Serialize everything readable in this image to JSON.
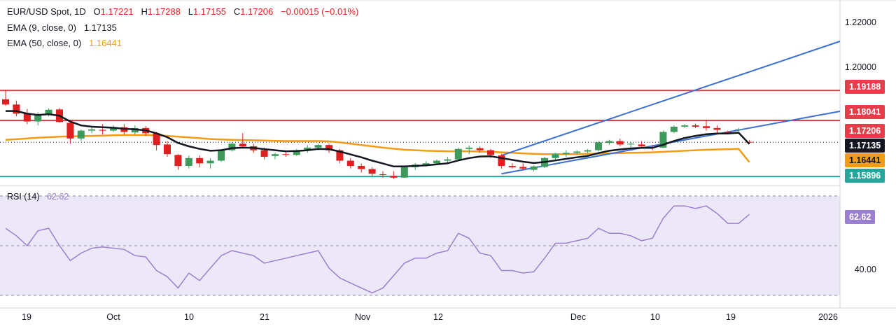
{
  "header": {
    "symbol": "EUR/USD Spot, 1D",
    "o_label": "O",
    "open": "1.17221",
    "h_label": "H",
    "high": "1.17288",
    "l_label": "L",
    "low": "1.17155",
    "c_label": "C",
    "close": "1.17206",
    "change": "−0.00015 (−0.01%)",
    "ema9_label": "EMA (9, close, 0)",
    "ema9_value": "1.17135",
    "ema50_label": "EMA (50, close, 0)",
    "ema50_value": "1.16441",
    "rsi_label": "RSI (14)",
    "rsi_value": "62.62"
  },
  "colors": {
    "up": "#26a69a",
    "upFill": "#3d9a5b",
    "down": "#e02020",
    "ema9": "#131722",
    "ema50": "#f39c12",
    "hline_red": "#e53e4a",
    "hline_green": "#26a69a",
    "channel": "#3a6fd8",
    "rsi": "#9b7fd1",
    "rsi_band": "#ede8f7"
  },
  "price_labels": [
    {
      "text": "1.19188",
      "bg": "#e53e4a",
      "fg": "#ffffff",
      "value": 1.19188
    },
    {
      "text": "1.18041",
      "bg": "#e53e4a",
      "fg": "#ffffff",
      "value": 1.18041
    },
    {
      "text": "1.17206",
      "bg": "#e53e4a",
      "fg": "#ffffff",
      "value": 1.17206
    },
    {
      "text": "1.17135",
      "bg": "#131722",
      "fg": "#ffffff",
      "value": 1.17135
    },
    {
      "text": "1.16441",
      "bg": "#f39c12",
      "fg": "#131722",
      "value": 1.16441
    },
    {
      "text": "1.15896",
      "bg": "#26a69a",
      "fg": "#ffffff",
      "value": 1.15896
    }
  ],
  "price_ticks": [
    "1.22000",
    "1.20000"
  ],
  "rsi_ticks": [
    "40.00"
  ],
  "x_ticks": [
    "19",
    "Oct",
    "10",
    "21",
    "Nov",
    "12",
    "Dec",
    "10",
    "19",
    "2026"
  ],
  "chart_data": {
    "type": "candlestick",
    "price_ylim": [
      1.1555,
      1.2265
    ],
    "rsi_ylim": [
      30,
      70
    ],
    "rsi_levels": [
      70,
      50,
      30
    ],
    "hlines": [
      1.19188,
      1.18041,
      1.15896
    ],
    "candles": [
      [
        1.1885,
        1.192,
        1.186,
        1.1865
      ],
      [
        1.1865,
        1.188,
        1.182,
        1.183
      ],
      [
        1.1832,
        1.1848,
        1.179,
        1.18
      ],
      [
        1.18,
        1.1835,
        1.1785,
        1.1825
      ],
      [
        1.1828,
        1.185,
        1.182,
        1.1845
      ],
      [
        1.1846,
        1.1852,
        1.1795,
        1.1798
      ],
      [
        1.1795,
        1.18,
        1.1715,
        1.1735
      ],
      [
        1.1735,
        1.177,
        1.1725,
        1.1765
      ],
      [
        1.1765,
        1.178,
        1.1755,
        1.177
      ],
      [
        1.1768,
        1.179,
        1.175,
        1.1765
      ],
      [
        1.1765,
        1.1785,
        1.176,
        1.1775
      ],
      [
        1.1778,
        1.179,
        1.175,
        1.176
      ],
      [
        1.1758,
        1.1785,
        1.175,
        1.1775
      ],
      [
        1.1775,
        1.1782,
        1.1745,
        1.1755
      ],
      [
        1.1755,
        1.176,
        1.169,
        1.171
      ],
      [
        1.1712,
        1.1725,
        1.1665,
        1.1675
      ],
      [
        1.1672,
        1.1675,
        1.1615,
        1.163
      ],
      [
        1.163,
        1.167,
        1.162,
        1.166
      ],
      [
        1.166,
        1.167,
        1.1625,
        1.164
      ],
      [
        1.164,
        1.166,
        1.162,
        1.165
      ],
      [
        1.165,
        1.1695,
        1.1645,
        1.169
      ],
      [
        1.169,
        1.172,
        1.1685,
        1.1715
      ],
      [
        1.1715,
        1.1755,
        1.17,
        1.1705
      ],
      [
        1.1705,
        1.1715,
        1.168,
        1.169
      ],
      [
        1.169,
        1.17,
        1.1655,
        1.1665
      ],
      [
        1.1668,
        1.168,
        1.1655,
        1.1675
      ],
      [
        1.1675,
        1.1685,
        1.1665,
        1.1672
      ],
      [
        1.1672,
        1.1695,
        1.1668,
        1.169
      ],
      [
        1.169,
        1.171,
        1.168,
        1.17
      ],
      [
        1.17,
        1.1715,
        1.169,
        1.171
      ],
      [
        1.171,
        1.1715,
        1.168,
        1.169
      ],
      [
        1.169,
        1.1695,
        1.164,
        1.165
      ],
      [
        1.165,
        1.166,
        1.162,
        1.163
      ],
      [
        1.163,
        1.164,
        1.1605,
        1.1618
      ],
      [
        1.1618,
        1.1625,
        1.159,
        1.16
      ],
      [
        1.1598,
        1.161,
        1.1585,
        1.1595
      ],
      [
        1.1592,
        1.161,
        1.158,
        1.1585
      ],
      [
        1.1585,
        1.163,
        1.1584,
        1.1625
      ],
      [
        1.1625,
        1.164,
        1.1615,
        1.1635
      ],
      [
        1.1632,
        1.1648,
        1.1628,
        1.164
      ],
      [
        1.164,
        1.1655,
        1.1635,
        1.165
      ],
      [
        1.165,
        1.1665,
        1.164,
        1.1655
      ],
      [
        1.1655,
        1.17,
        1.165,
        1.1695
      ],
      [
        1.1695,
        1.1708,
        1.1675,
        1.17
      ],
      [
        1.1698,
        1.1705,
        1.168,
        1.169
      ],
      [
        1.169,
        1.1695,
        1.166,
        1.1672
      ],
      [
        1.167,
        1.1675,
        1.162,
        1.163
      ],
      [
        1.163,
        1.164,
        1.162,
        1.1625
      ],
      [
        1.1626,
        1.164,
        1.1612,
        1.162
      ],
      [
        1.1615,
        1.1632,
        1.161,
        1.1628
      ],
      [
        1.1626,
        1.1665,
        1.1622,
        1.166
      ],
      [
        1.166,
        1.168,
        1.165,
        1.1675
      ],
      [
        1.1675,
        1.169,
        1.1665,
        1.168
      ],
      [
        1.168,
        1.169,
        1.1675,
        1.1685
      ],
      [
        1.1685,
        1.1695,
        1.1678,
        1.169
      ],
      [
        1.169,
        1.1725,
        1.1685,
        1.172
      ],
      [
        1.1718,
        1.173,
        1.171,
        1.1725
      ],
      [
        1.1725,
        1.1735,
        1.1705,
        1.1712
      ],
      [
        1.1712,
        1.1722,
        1.17,
        1.1715
      ],
      [
        1.1712,
        1.1725,
        1.17,
        1.1705
      ],
      [
        1.1702,
        1.171,
        1.169,
        1.17
      ],
      [
        1.17,
        1.1765,
        1.1698,
        1.176
      ],
      [
        1.176,
        1.1785,
        1.1755,
        1.178
      ],
      [
        1.178,
        1.179,
        1.1775,
        1.1785
      ],
      [
        1.1785,
        1.1792,
        1.1775,
        1.178
      ],
      [
        1.1782,
        1.1805,
        1.1765,
        1.1775
      ],
      [
        1.1775,
        1.1785,
        1.1755,
        1.1768
      ],
      [
        1.176,
        1.1765,
        1.175,
        1.1755
      ],
      [
        1.1768,
        1.1775,
        1.1762,
        1.177
      ],
      [
        1.17221,
        1.17288,
        1.17155,
        1.17206
      ]
    ],
    "ema9": [
      1.184,
      1.184,
      1.183,
      1.1825,
      1.1828,
      1.1822,
      1.18,
      1.1785,
      1.178,
      1.1778,
      1.1776,
      1.1772,
      1.177,
      1.1766,
      1.1755,
      1.174,
      1.1718,
      1.1705,
      1.1695,
      1.1688,
      1.169,
      1.1698,
      1.17,
      1.1699,
      1.1694,
      1.169,
      1.1686,
      1.1687,
      1.169,
      1.1695,
      1.1694,
      1.1685,
      1.1674,
      1.1663,
      1.165,
      1.1639,
      1.1628,
      1.1628,
      1.163,
      1.1632,
      1.1636,
      1.164,
      1.1651,
      1.166,
      1.1666,
      1.1667,
      1.166,
      1.1653,
      1.1646,
      1.1641,
      1.1645,
      1.1651,
      1.1657,
      1.1663,
      1.1668,
      1.1679,
      1.1688,
      1.1693,
      1.1697,
      1.1699,
      1.1699,
      1.1711,
      1.1725,
      1.1737,
      1.1745,
      1.1751,
      1.1754,
      1.1754,
      1.1757,
      1.17135
    ],
    "ema50": [
      1.173,
      1.1732,
      1.1735,
      1.1738,
      1.174,
      1.1742,
      1.1743,
      1.1744,
      1.1745,
      1.1746,
      1.1747,
      1.1748,
      1.1748,
      1.1748,
      1.1747,
      1.1745,
      1.1742,
      1.1739,
      1.1736,
      1.1733,
      1.1731,
      1.173,
      1.1729,
      1.1728,
      1.1727,
      1.1726,
      1.1725,
      1.1725,
      1.1725,
      1.1725,
      1.1724,
      1.172,
      1.1715,
      1.171,
      1.1705,
      1.17,
      1.1696,
      1.1692,
      1.169,
      1.1688,
      1.1687,
      1.1686,
      1.1686,
      1.1686,
      1.1685,
      1.1684,
      1.1682,
      1.168,
      1.1678,
      1.1676,
      1.1675,
      1.1675,
      1.1675,
      1.1675,
      1.1676,
      1.1677,
      1.1678,
      1.1679,
      1.168,
      1.1681,
      1.1682,
      1.1684,
      1.1686,
      1.1688,
      1.169,
      1.1692,
      1.1693,
      1.1694,
      1.1695,
      1.16441
    ],
    "rsi": [
      57,
      54,
      50,
      56,
      57,
      50,
      44,
      47,
      49,
      49.5,
      49,
      48.5,
      46,
      45.5,
      40,
      37.5,
      33,
      39,
      36,
      41,
      46,
      48,
      47,
      46,
      43,
      44,
      45,
      46,
      47,
      48,
      41,
      37,
      35,
      33,
      31,
      33,
      38,
      43,
      45,
      45,
      47,
      48,
      55,
      53,
      47,
      46,
      40,
      40,
      39,
      39.5,
      45,
      51,
      51,
      52,
      53,
      57,
      55,
      55,
      54,
      52,
      53,
      61,
      66,
      66,
      65,
      66,
      63,
      59,
      59,
      62.62
    ],
    "channel_upper": [
      [
        1.167,
        46
      ],
      [
        1.199,
        69
      ]
    ],
    "channel_lower": [
      [
        1.16,
        46
      ],
      [
        1.1775,
        69
      ]
    ]
  }
}
